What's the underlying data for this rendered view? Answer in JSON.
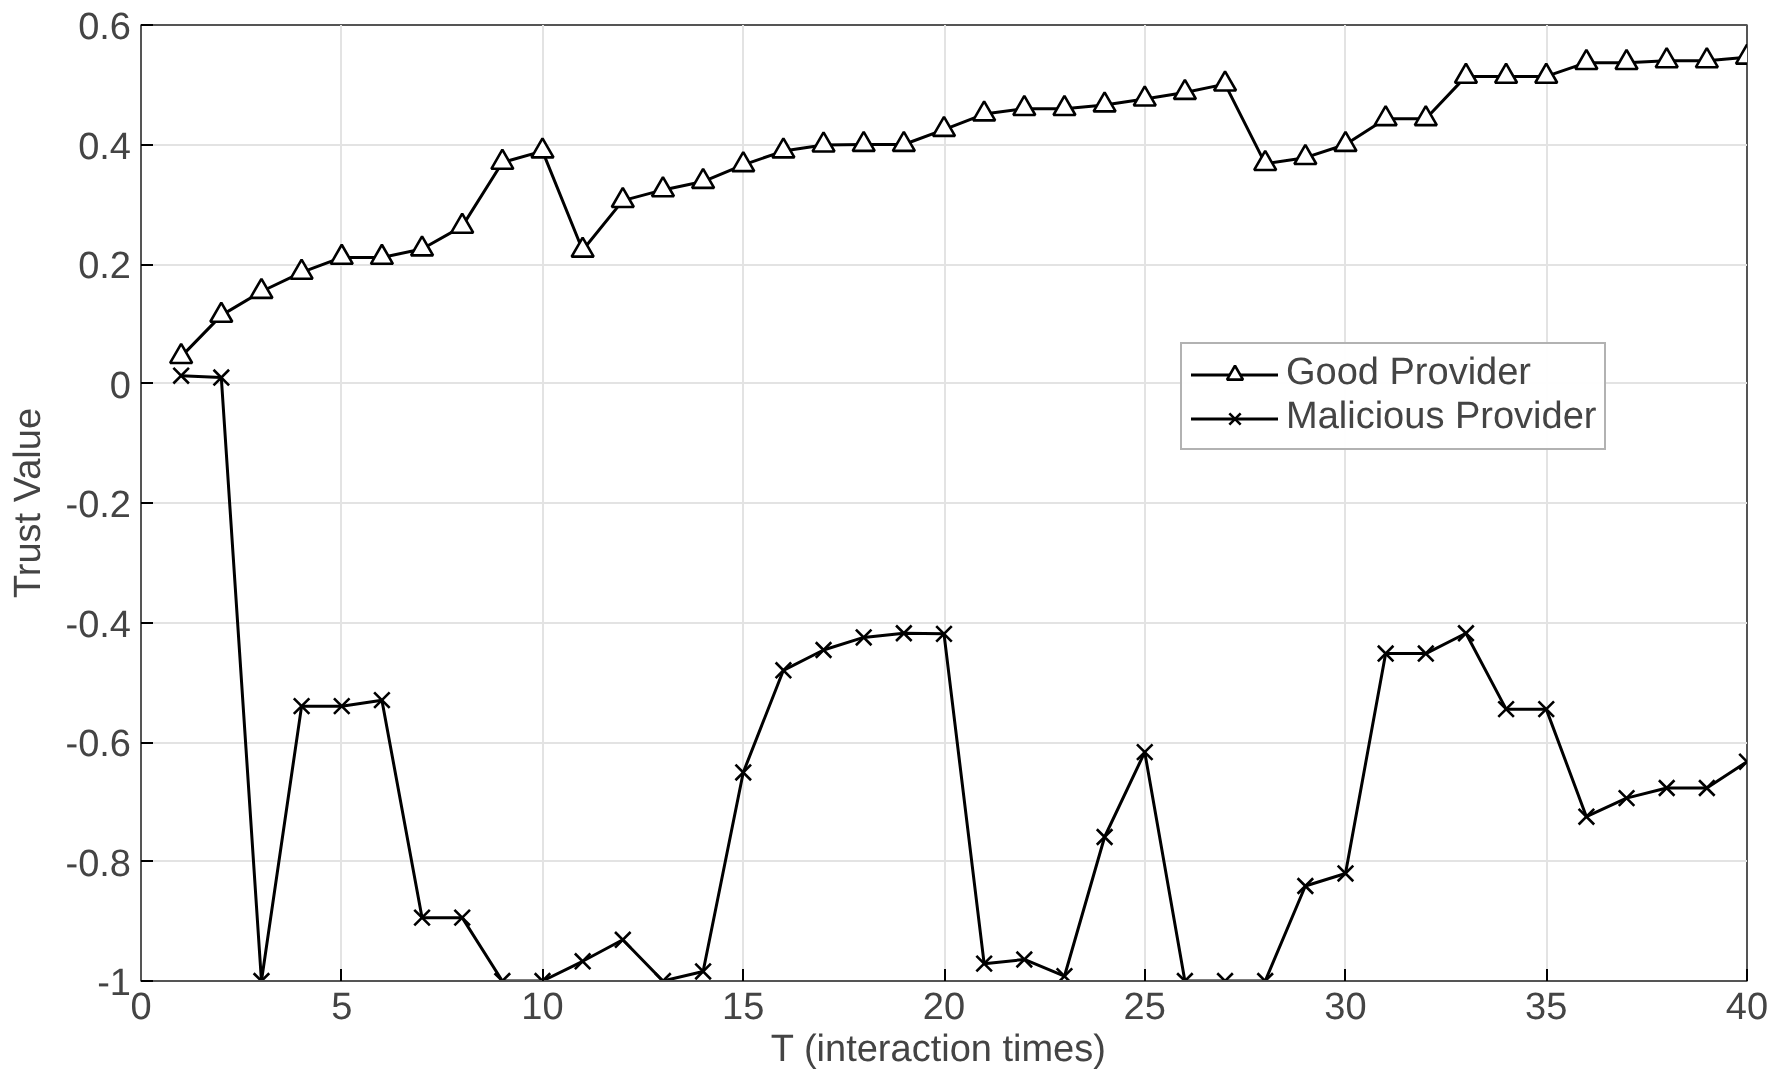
{
  "chart_data": {
    "type": "line",
    "xlabel": "T  (interaction times)",
    "ylabel": "Trust Value",
    "x": [
      1,
      2,
      3,
      4,
      5,
      6,
      7,
      8,
      9,
      10,
      11,
      12,
      13,
      14,
      15,
      16,
      17,
      18,
      19,
      20,
      21,
      22,
      23,
      24,
      25,
      26,
      27,
      28,
      29,
      30,
      31,
      32,
      33,
      34,
      35,
      36,
      37,
      38,
      39,
      40
    ],
    "series": [
      {
        "name": "Good Provider",
        "color": "#000000",
        "marker": "triangle",
        "values": [
          0.045,
          0.114,
          0.154,
          0.186,
          0.211,
          0.211,
          0.225,
          0.263,
          0.37,
          0.389,
          0.223,
          0.306,
          0.324,
          0.338,
          0.366,
          0.389,
          0.399,
          0.4,
          0.4,
          0.425,
          0.451,
          0.46,
          0.46,
          0.466,
          0.476,
          0.487,
          0.501,
          0.368,
          0.378,
          0.4,
          0.443,
          0.443,
          0.514,
          0.514,
          0.514,
          0.537,
          0.537,
          0.54,
          0.54,
          0.546
        ]
      },
      {
        "name": "Malicious Provider",
        "color": "#000000",
        "marker": "cross",
        "values": [
          0.013,
          0.01,
          -1,
          -0.54,
          -0.54,
          -0.53,
          -0.894,
          -0.894,
          -1,
          -1,
          -0.967,
          -0.931,
          -1,
          -0.984,
          -0.651,
          -0.48,
          -0.446,
          -0.425,
          -0.418,
          -0.419,
          -0.971,
          -0.964,
          -0.992,
          -0.759,
          -0.617,
          -1,
          -1,
          -1,
          -0.841,
          -0.82,
          -0.452,
          -0.452,
          -0.418,
          -0.545,
          -0.545,
          -0.725,
          -0.694,
          -0.677,
          -0.677,
          -0.633
        ]
      }
    ],
    "xlim": [
      0,
      40
    ],
    "xticks": [
      0,
      5,
      10,
      15,
      20,
      25,
      30,
      35,
      40
    ],
    "ylim": [
      -1,
      0.6
    ],
    "yticks": [
      {
        "value": -1,
        "label": "-1"
      },
      -0.8,
      -0.6,
      -0.4,
      -0.2,
      {
        "value": 0,
        "label": "0"
      },
      0.2,
      0.4,
      0.6
    ],
    "grid": true,
    "legend": "top right",
    "line_style": "solid"
  }
}
